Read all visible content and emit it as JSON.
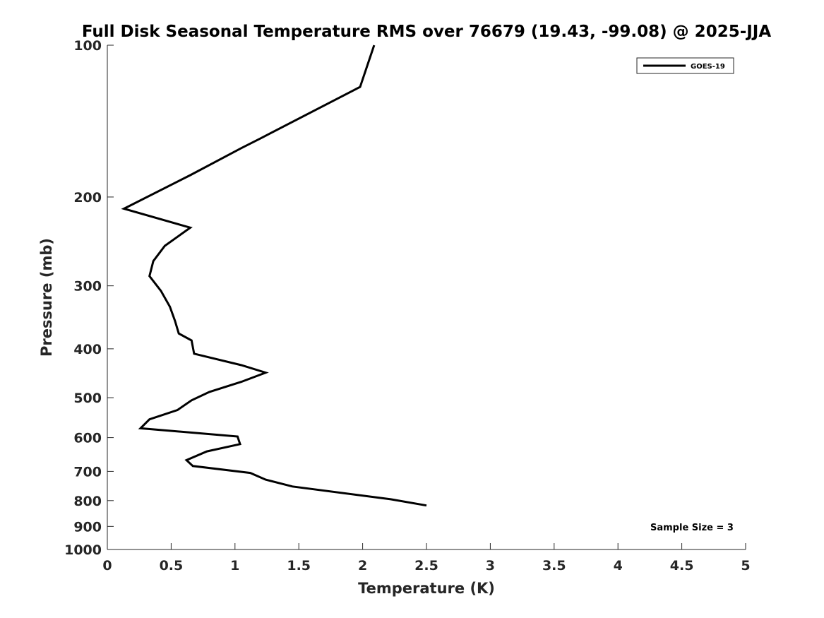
{
  "chart_data": {
    "type": "line",
    "title": "Full Disk Seasonal Temperature RMS over 76679 (19.43, -99.08) @ 2025-JJA",
    "xlabel": "Temperature (K)",
    "ylabel": "Pressure (mb)",
    "xlim": [
      0,
      5
    ],
    "ylim": [
      100,
      1000
    ],
    "y_scale": "log",
    "y_reversed": true,
    "grid": false,
    "x_ticks": [
      0,
      0.5,
      1,
      1.5,
      2,
      2.5,
      3,
      3.5,
      4,
      4.5,
      5
    ],
    "x_tick_labels": [
      "0",
      "0.5",
      "1",
      "1.5",
      "2",
      "2.5",
      "3",
      "3.5",
      "4",
      "4.5",
      "5"
    ],
    "y_ticks": [
      100,
      200,
      300,
      400,
      500,
      600,
      700,
      800,
      900,
      1000
    ],
    "y_tick_labels": [
      "100",
      "200",
      "300",
      "400",
      "500",
      "600",
      "700",
      "800",
      "900",
      "1000"
    ],
    "legend": {
      "placement": "top-right",
      "entries": [
        "GOES-19"
      ]
    },
    "annotations": [
      "Sample Size = 3"
    ],
    "series": [
      {
        "name": "GOES-19",
        "color": "#000000",
        "points": [
          {
            "x": 2.09,
            "y": 100
          },
          {
            "x": 1.98,
            "y": 121
          },
          {
            "x": 1.2,
            "y": 153
          },
          {
            "x": 1.05,
            "y": 160
          },
          {
            "x": 0.65,
            "y": 181
          },
          {
            "x": 0.13,
            "y": 211
          },
          {
            "x": 0.65,
            "y": 230
          },
          {
            "x": 0.45,
            "y": 250
          },
          {
            "x": 0.36,
            "y": 268
          },
          {
            "x": 0.33,
            "y": 287
          },
          {
            "x": 0.42,
            "y": 307
          },
          {
            "x": 0.49,
            "y": 330
          },
          {
            "x": 0.53,
            "y": 352
          },
          {
            "x": 0.56,
            "y": 373
          },
          {
            "x": 0.66,
            "y": 385
          },
          {
            "x": 0.68,
            "y": 409
          },
          {
            "x": 1.05,
            "y": 431
          },
          {
            "x": 1.24,
            "y": 446
          },
          {
            "x": 1.05,
            "y": 465
          },
          {
            "x": 0.8,
            "y": 487
          },
          {
            "x": 0.66,
            "y": 506
          },
          {
            "x": 0.55,
            "y": 529
          },
          {
            "x": 0.33,
            "y": 552
          },
          {
            "x": 0.26,
            "y": 575
          },
          {
            "x": 1.02,
            "y": 597
          },
          {
            "x": 1.04,
            "y": 618
          },
          {
            "x": 0.78,
            "y": 639
          },
          {
            "x": 0.62,
            "y": 665
          },
          {
            "x": 0.67,
            "y": 683
          },
          {
            "x": 1.12,
            "y": 705
          },
          {
            "x": 1.24,
            "y": 727
          },
          {
            "x": 1.45,
            "y": 750
          },
          {
            "x": 2.22,
            "y": 795
          },
          {
            "x": 2.5,
            "y": 818
          }
        ]
      }
    ]
  }
}
